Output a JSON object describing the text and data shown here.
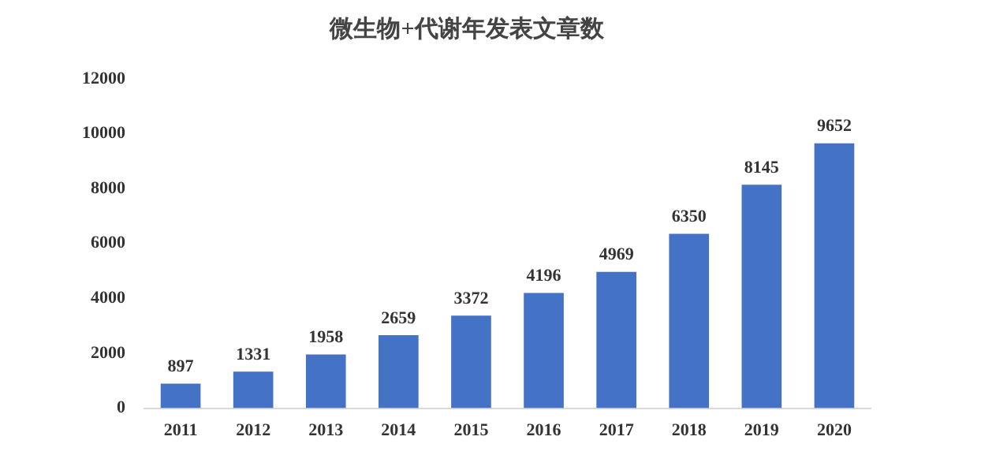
{
  "chart_data": {
    "type": "bar",
    "title": "微生物+代谢年发表文章数",
    "categories": [
      "2011",
      "2012",
      "2013",
      "2014",
      "2015",
      "2016",
      "2017",
      "2018",
      "2019",
      "2020"
    ],
    "values": [
      897,
      1331,
      1958,
      2659,
      3372,
      4196,
      4969,
      6350,
      8145,
      9652
    ],
    "color": "#4472c4",
    "ylim": [
      0,
      12000
    ],
    "yticks": [
      0,
      2000,
      4000,
      6000,
      8000,
      10000,
      12000
    ],
    "grid": false,
    "legend": false,
    "data_labels": true
  }
}
